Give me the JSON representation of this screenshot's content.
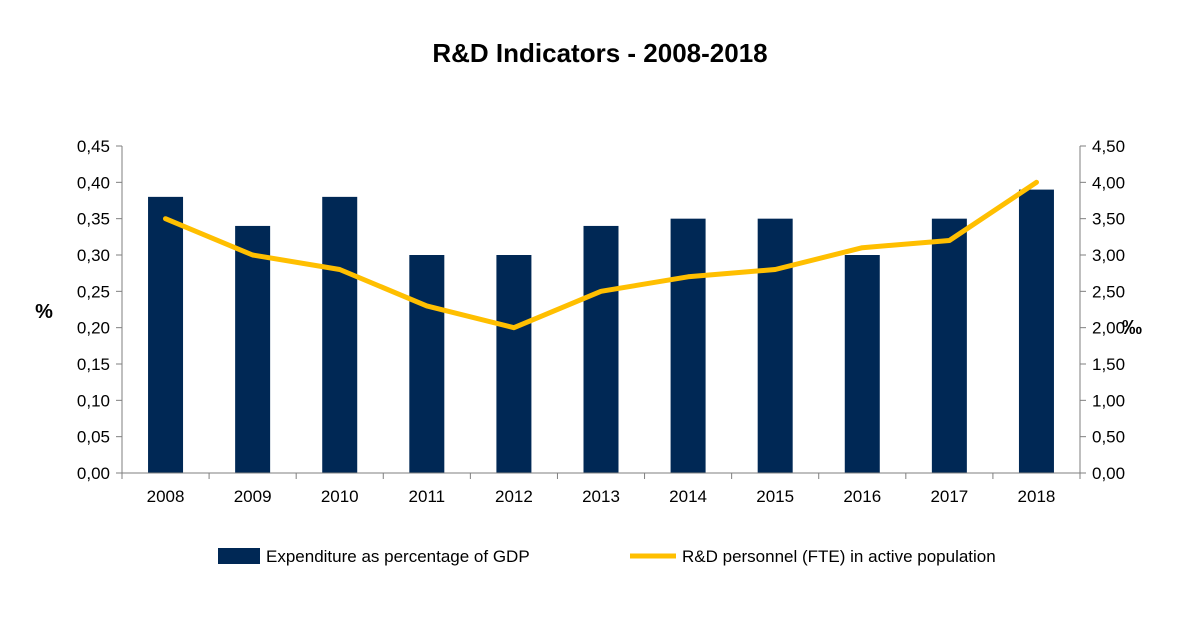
{
  "chart_data": {
    "type": "bar",
    "title": "R&D Indicators - 2008-2018",
    "categories": [
      "2008",
      "2009",
      "2010",
      "2011",
      "2012",
      "2013",
      "2014",
      "2015",
      "2016",
      "2017",
      "2018"
    ],
    "y_left": {
      "label": "%",
      "min": 0,
      "max": 0.45,
      "step": 0.05,
      "tick_labels": [
        "0,00",
        "0,05",
        "0,10",
        "0,15",
        "0,20",
        "0,25",
        "0,30",
        "0,35",
        "0,40",
        "0,45"
      ]
    },
    "y_right": {
      "label": "‰",
      "min": 0,
      "max": 4.5,
      "step": 0.5,
      "tick_labels": [
        "0,00",
        "0,50",
        "1,00",
        "1,50",
        "2,00",
        "2,50",
        "3,00",
        "3,50",
        "4,00",
        "4,50"
      ]
    },
    "series": [
      {
        "name": "Expenditure as percentage of GDP",
        "type": "bar",
        "axis": "left",
        "color": "#002855",
        "values": [
          0.38,
          0.34,
          0.38,
          0.3,
          0.3,
          0.34,
          0.35,
          0.35,
          0.3,
          0.35,
          0.39
        ]
      },
      {
        "name": "R&D personnel (FTE) in active population",
        "type": "line",
        "axis": "right",
        "color": "#FFBF00",
        "values": [
          3.5,
          3.0,
          2.8,
          2.3,
          2.0,
          2.5,
          2.7,
          2.8,
          3.1,
          3.2,
          4.0
        ]
      }
    ],
    "grid": false,
    "legend": "bottom"
  }
}
